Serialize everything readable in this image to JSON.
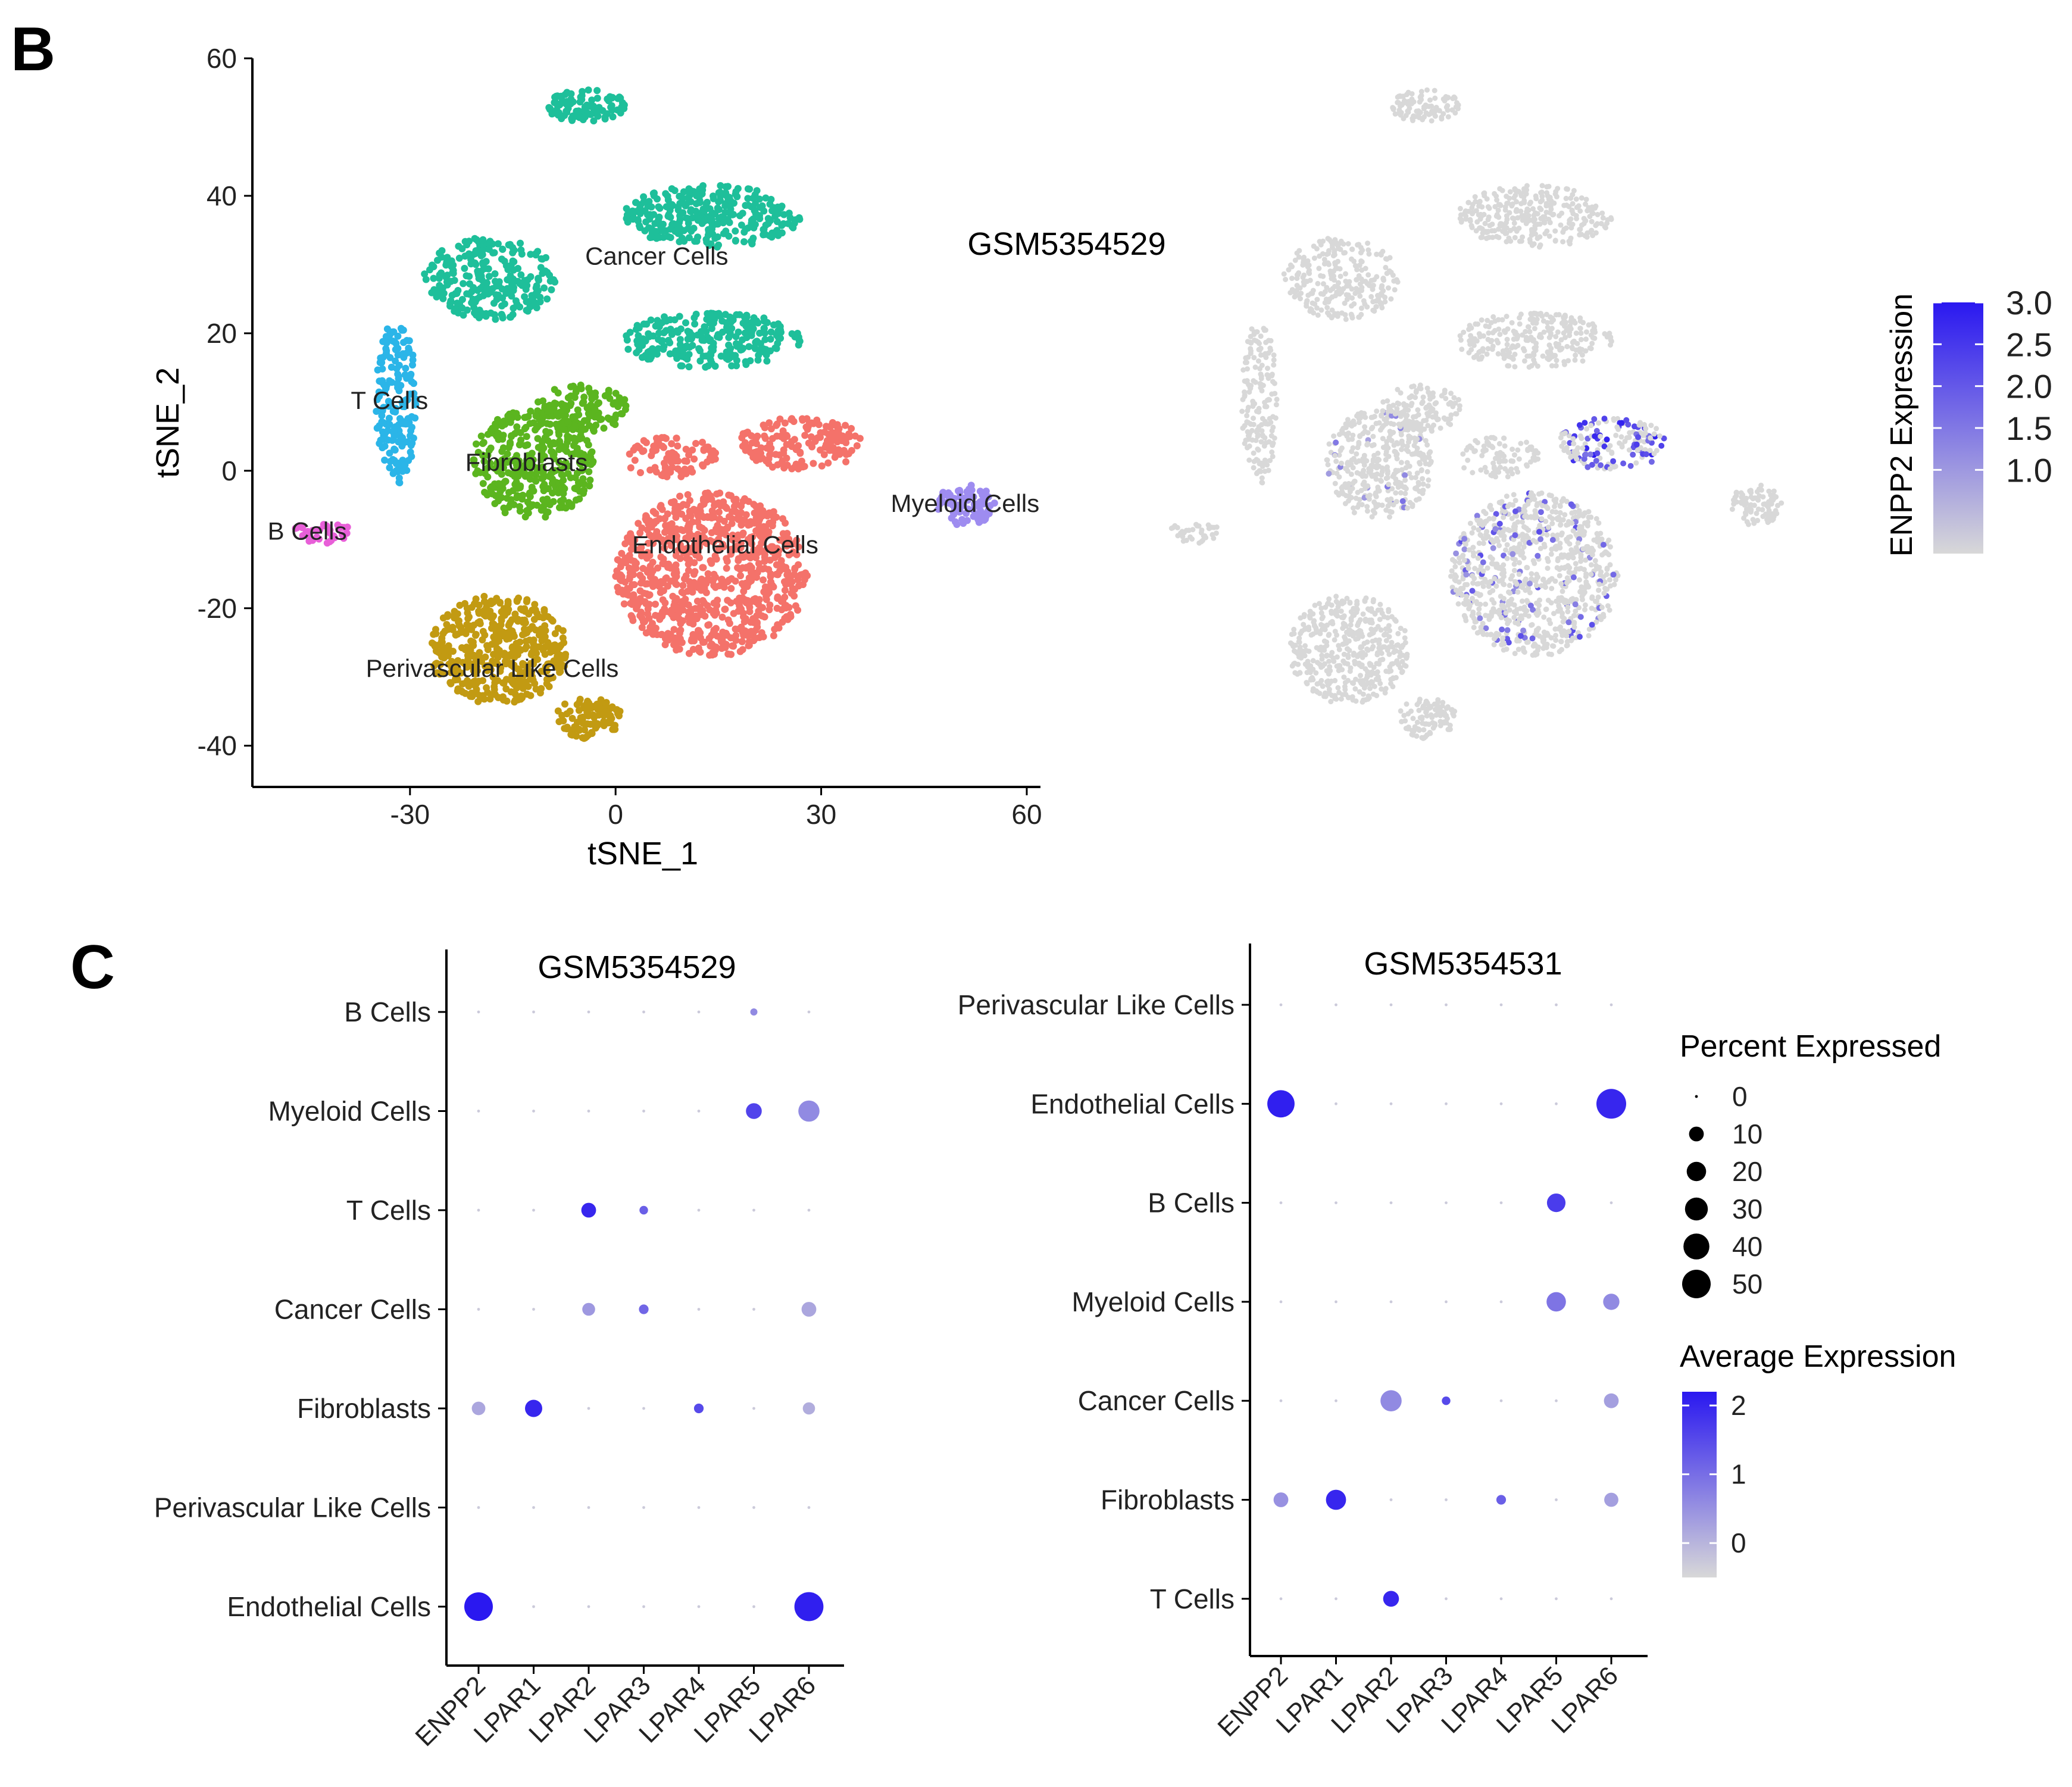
{
  "panel_b": {
    "letter": "B",
    "title": "GSM5354529",
    "x_label": "tSNE_1",
    "y_label": "tSNE_2",
    "x_ticks": [
      "-30",
      "0",
      "30",
      "60"
    ],
    "y_ticks": [
      "60",
      "40",
      "20",
      "0",
      "-20",
      "-40"
    ],
    "colorbar_title": "ENPP2 Expression",
    "colorbar_ticks": [
      "3.0",
      "2.5",
      "2.0",
      "1.5",
      "1.0"
    ]
  },
  "panel_c": {
    "letter": "C",
    "left_title": "GSM5354529",
    "right_title": "GSM5354531",
    "size_legend_title": "Percent Expressed",
    "size_legend_labels": [
      "0",
      "10",
      "20",
      "30",
      "40",
      "50"
    ],
    "color_legend_title": "Average Expression",
    "color_legend_labels": [
      "2",
      "1",
      "0"
    ]
  },
  "chart_data": [
    {
      "type": "scatter",
      "title": "",
      "xlabel": "tSNE_1",
      "ylabel": "tSNE_2",
      "xlim": [
        -53,
        62
      ],
      "ylim": [
        -46,
        60
      ],
      "colors": {
        "Cancer Cells": "#1ebf9a",
        "T Cells": "#2bb5e8",
        "Fibroblasts": "#5bb51f",
        "B Cells": "#e85fd8",
        "Endothelial Cells": "#f4726a",
        "Myeloid Cells": "#9e8cf0",
        "Perivascular Like Cells": "#c29a12"
      },
      "series": [
        {
          "name": "Cancer Cells",
          "label_at": [
            6,
            30
          ],
          "blobs": [
            {
              "cx": -4,
              "cy": 53,
              "rx": 6,
              "ry": 2.5,
              "n": 90
            },
            {
              "cx": -18,
              "cy": 28,
              "rx": 10,
              "ry": 6,
              "n": 260
            },
            {
              "cx": 14,
              "cy": 37,
              "rx": 13,
              "ry": 4.5,
              "n": 300
            },
            {
              "cx": 14,
              "cy": 19,
              "rx": 13,
              "ry": 4,
              "n": 260
            }
          ]
        },
        {
          "name": "T Cells",
          "label_at": [
            -33,
            9
          ],
          "blobs": [
            {
              "cx": -32,
              "cy": 10,
              "rx": 3,
              "ry": 12,
              "n": 180
            }
          ]
        },
        {
          "name": "Fibroblasts",
          "label_at": [
            -13,
            0
          ],
          "blobs": [
            {
              "cx": -12,
              "cy": 1,
              "rx": 9,
              "ry": 8,
              "n": 380
            },
            {
              "cx": -5,
              "cy": 9,
              "rx": 7,
              "ry": 3.5,
              "n": 120
            }
          ]
        },
        {
          "name": "B Cells",
          "label_at": [
            -45,
            -10
          ],
          "blobs": [
            {
              "cx": -43,
              "cy": -9,
              "rx": 4.5,
              "ry": 1.6,
              "n": 35
            }
          ]
        },
        {
          "name": "Endothelial Cells",
          "label_at": [
            16,
            -12
          ],
          "blobs": [
            {
              "cx": 14,
              "cy": -15,
              "rx": 14,
              "ry": 12,
              "n": 850
            },
            {
              "cx": 27,
              "cy": 4,
              "rx": 9,
              "ry": 4,
              "n": 160
            },
            {
              "cx": 8,
              "cy": 2,
              "rx": 7,
              "ry": 3,
              "n": 90
            }
          ]
        },
        {
          "name": "Myeloid Cells",
          "label_at": [
            51,
            -6
          ],
          "blobs": [
            {
              "cx": 51,
              "cy": -5,
              "rx": 4.5,
              "ry": 3,
              "n": 90
            }
          ]
        },
        {
          "name": "Perivascular Like Cells",
          "label_at": [
            -18,
            -30
          ],
          "blobs": [
            {
              "cx": -17,
              "cy": -26,
              "rx": 10,
              "ry": 8,
              "n": 450
            },
            {
              "cx": -4,
              "cy": -36,
              "rx": 5,
              "ry": 3,
              "n": 100
            }
          ]
        }
      ]
    },
    {
      "type": "scatter",
      "title": "GSM5354529",
      "value": "ENPP2 Expression",
      "color_range": [
        0,
        3.0
      ],
      "colorbar_ticks": [
        3.0,
        2.5,
        2.0,
        1.5,
        1.0
      ],
      "low_color": "#d8d8d8",
      "high_color": "#2a18f0",
      "expression_hotspots": [
        {
          "cx": 27,
          "cy": 4,
          "rx": 9,
          "ry": 4,
          "share": 0.35,
          "max": 3.0
        },
        {
          "cx": 14,
          "cy": -15,
          "rx": 14,
          "ry": 12,
          "share": 0.12,
          "max": 2.2
        },
        {
          "cx": -12,
          "cy": 1,
          "rx": 9,
          "ry": 8,
          "share": 0.06,
          "max": 1.6
        }
      ]
    },
    {
      "type": "scatter",
      "title": "GSM5354529",
      "genes": [
        "ENPP2",
        "LPAR1",
        "LPAR2",
        "LPAR3",
        "LPAR4",
        "LPAR5",
        "LPAR6"
      ],
      "cell_types": [
        "B Cells",
        "Myeloid Cells",
        "T Cells",
        "Cancer Cells",
        "Fibroblasts",
        "Perivascular Like Cells",
        "Endothelial Cells"
      ],
      "percent_expressed": [
        [
          0,
          0,
          0,
          0,
          0,
          1,
          0
        ],
        [
          0,
          0,
          0,
          0,
          0,
          12,
          25
        ],
        [
          0,
          0,
          10,
          2,
          0,
          0,
          0
        ],
        [
          0,
          0,
          7,
          3,
          0,
          0,
          10
        ],
        [
          8,
          15,
          0,
          0,
          3,
          0,
          6
        ],
        [
          0,
          0,
          0,
          0,
          0,
          0,
          0
        ],
        [
          50,
          0,
          0,
          0,
          0,
          0,
          52
        ]
      ],
      "average_expression": [
        [
          -0.3,
          -0.3,
          -0.3,
          -0.3,
          -0.3,
          0.6,
          -0.3
        ],
        [
          -0.3,
          -0.3,
          -0.3,
          -0.3,
          -0.3,
          1.6,
          0.6
        ],
        [
          -0.3,
          -0.3,
          2.0,
          1.2,
          -0.3,
          -0.3,
          -0.3
        ],
        [
          -0.3,
          -0.3,
          0.4,
          1.1,
          -0.3,
          -0.3,
          0.2
        ],
        [
          0.2,
          2.0,
          -0.3,
          -0.3,
          1.5,
          -0.3,
          0.1
        ],
        [
          -0.3,
          -0.3,
          -0.3,
          -0.3,
          -0.3,
          -0.3,
          -0.3
        ],
        [
          2.2,
          -0.3,
          -0.3,
          -0.3,
          -0.3,
          -0.3,
          2.1
        ]
      ]
    },
    {
      "type": "scatter",
      "title": "GSM5354531",
      "genes": [
        "ENPP2",
        "LPAR1",
        "LPAR2",
        "LPAR3",
        "LPAR4",
        "LPAR5",
        "LPAR6"
      ],
      "cell_types": [
        "Perivascular Like Cells",
        "Endothelial Cells",
        "B Cells",
        "Myeloid Cells",
        "Cancer Cells",
        "Fibroblasts",
        "T Cells"
      ],
      "percent_expressed": [
        [
          0,
          0,
          0,
          0,
          0,
          0,
          0
        ],
        [
          45,
          0,
          0,
          0,
          0,
          0,
          55
        ],
        [
          0,
          0,
          0,
          0,
          0,
          18,
          0
        ],
        [
          0,
          0,
          0,
          0,
          0,
          20,
          13
        ],
        [
          0,
          0,
          25,
          2,
          0,
          0,
          10
        ],
        [
          10,
          22,
          0,
          0,
          3,
          0,
          9
        ],
        [
          0,
          0,
          12,
          0,
          0,
          0,
          0
        ]
      ],
      "average_expression": [
        [
          -0.3,
          -0.3,
          -0.3,
          -0.3,
          -0.3,
          -0.3,
          -0.3
        ],
        [
          2.1,
          -0.3,
          -0.3,
          -0.3,
          -0.3,
          -0.3,
          2.0
        ],
        [
          -0.3,
          -0.3,
          -0.3,
          -0.3,
          -0.3,
          1.7,
          -0.3
        ],
        [
          -0.3,
          -0.3,
          -0.3,
          -0.3,
          -0.3,
          0.9,
          0.6
        ],
        [
          -0.3,
          -0.3,
          0.6,
          1.5,
          -0.3,
          -0.3,
          0.3
        ],
        [
          0.5,
          2.0,
          -0.3,
          -0.3,
          1.2,
          -0.3,
          0.3
        ],
        [
          -0.3,
          -0.3,
          2.0,
          -0.3,
          -0.3,
          -0.3,
          -0.3
        ]
      ],
      "size_legend": [
        0,
        10,
        20,
        30,
        40,
        50
      ],
      "color_legend": [
        2,
        1,
        0
      ],
      "color_range": [
        -0.5,
        2.2
      ]
    }
  ]
}
